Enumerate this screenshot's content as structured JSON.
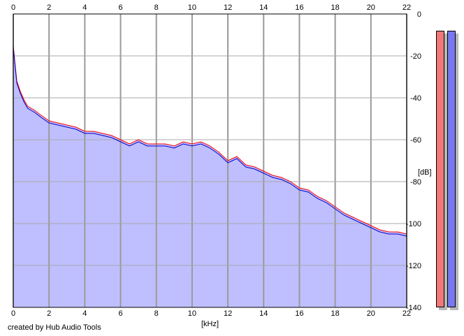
{
  "chart_data": {
    "type": "line",
    "title": "",
    "xlabel": "[kHz]",
    "ylabel": "[dB]",
    "xlim": [
      0,
      22
    ],
    "ylim": [
      -140,
      0
    ],
    "x_ticks": [
      "0",
      "2",
      "4",
      "6",
      "8",
      "10",
      "12",
      "14",
      "16",
      "18",
      "20",
      "22"
    ],
    "y_ticks": [
      "0",
      "-20",
      "-40",
      "-60",
      "-80",
      "-100",
      "-120",
      "-140"
    ],
    "grid": true,
    "fill_color": "#bfbfff",
    "series": [
      {
        "color": "#ff0000",
        "x": [
          0,
          0.1,
          0.2,
          0.4,
          0.6,
          0.8,
          1,
          1.2,
          1.5,
          2,
          2.5,
          3,
          3.5,
          4,
          4.5,
          5,
          5.5,
          6,
          6.5,
          7,
          7.5,
          8,
          8.5,
          9,
          9.5,
          10,
          10.5,
          11,
          11.5,
          12,
          12.5,
          13,
          13.5,
          14,
          14.5,
          15,
          15.5,
          16,
          16.5,
          17,
          17.5,
          18,
          18.5,
          19,
          19.5,
          20,
          20.5,
          21,
          21.5,
          22
        ],
        "values": [
          -15,
          -24,
          -32,
          -37,
          -41,
          -44,
          -45,
          -46,
          -48,
          -51,
          -52,
          -53,
          -54,
          -56,
          -56,
          -57,
          -58,
          -60,
          -62,
          -60,
          -62,
          -62,
          -62,
          -63,
          -61,
          -62,
          -61,
          -63,
          -66,
          -70,
          -68,
          -72,
          -73,
          -75,
          -77,
          -78,
          -80,
          -83,
          -84,
          -87,
          -89,
          -92,
          -95,
          -97,
          -99,
          -101,
          -103,
          -104,
          -104,
          -105
        ]
      },
      {
        "color": "#0000cc",
        "x": [
          0,
          0.1,
          0.2,
          0.4,
          0.6,
          0.8,
          1,
          1.2,
          1.5,
          2,
          2.5,
          3,
          3.5,
          4,
          4.5,
          5,
          5.5,
          6,
          6.5,
          7,
          7.5,
          8,
          8.5,
          9,
          9.5,
          10,
          10.5,
          11,
          11.5,
          12,
          12.5,
          13,
          13.5,
          14,
          14.5,
          15,
          15.5,
          16,
          16.5,
          17,
          17.5,
          18,
          18.5,
          19,
          19.5,
          20,
          20.5,
          21,
          21.5,
          22
        ],
        "values": [
          -16,
          -25,
          -33,
          -38,
          -42,
          -45,
          -46,
          -47,
          -49,
          -52,
          -53,
          -54,
          -55,
          -57,
          -57,
          -58,
          -59,
          -61,
          -63,
          -61,
          -63,
          -63,
          -63,
          -64,
          -62,
          -63,
          -62,
          -64,
          -67,
          -71,
          -69,
          -73,
          -74,
          -76,
          -78,
          -79,
          -81,
          -84,
          -85,
          -88,
          -90,
          -93,
          -96,
          -98,
          -100,
          -102,
          -104,
          -105,
          -105,
          -106
        ]
      }
    ]
  },
  "footer": {
    "credit": "created by Hub Audio Tools"
  },
  "meters": {
    "left_color": "#f07878",
    "right_color": "#7878f0"
  }
}
